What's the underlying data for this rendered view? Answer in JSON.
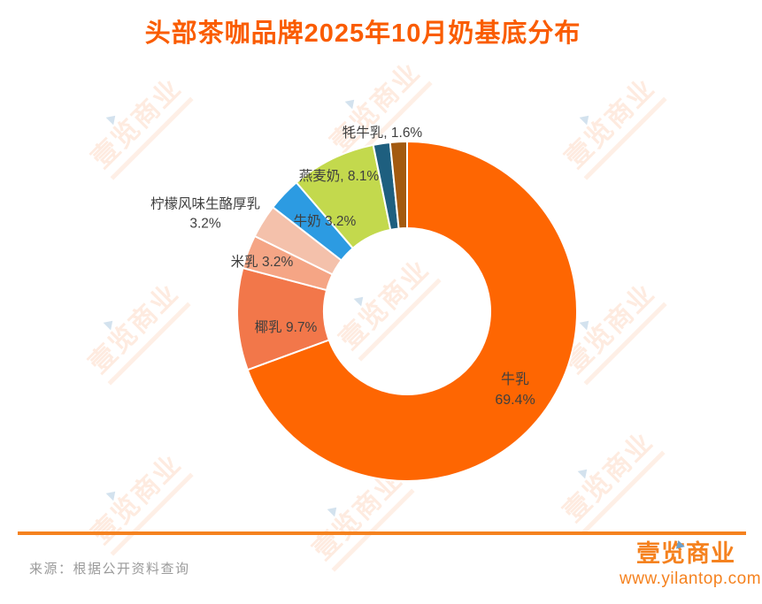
{
  "title": "头部茶咖品牌2025年10月奶基底分布",
  "watermark": {
    "text": "壹览商业"
  },
  "chart_data": {
    "type": "pie",
    "subtype": "donut",
    "title": "头部茶咖品牌2025年10月奶基底分布",
    "start_angle_deg": 0,
    "direction": "clockwise",
    "hole_ratio": 0.49,
    "legend": "none",
    "slices": [
      {
        "name": "牛乳",
        "value": 69.4,
        "color": "#fe6602",
        "label_lines": [
          "牛乳",
          "69.4%"
        ],
        "label_position": "inside"
      },
      {
        "name": "椰乳",
        "value": 9.7,
        "color": "#f2774a",
        "label_lines": [
          "椰乳 9.7%"
        ],
        "label_position": "inside"
      },
      {
        "name": "米乳",
        "value": 3.2,
        "color": "#f5a585",
        "label_lines": [
          "米乳 3.2%"
        ],
        "label_position": "inside"
      },
      {
        "name": "柠檬风味生酪厚乳",
        "value": 3.2,
        "color": "#f4c1ab",
        "label_lines": [
          "柠檬风味生酪厚乳",
          "3.2%"
        ],
        "label_position": "outside"
      },
      {
        "name": "牛奶",
        "value": 3.2,
        "color": "#2c9be2",
        "label_lines": [
          "牛奶 3.2%"
        ],
        "label_position": "inside"
      },
      {
        "name": "燕麦奶",
        "value": 8.1,
        "color": "#c3d94d",
        "label_lines": [
          "燕麦奶, 8.1%"
        ],
        "label_position": "inside"
      },
      {
        "name": "牦牛乳",
        "value": 1.6,
        "color": "#1e5f7f",
        "label_lines": [
          "牦牛乳, 1.6%"
        ],
        "label_position": "outside"
      },
      {
        "name": "",
        "value": 1.6,
        "color": "#a35a10",
        "label_lines": [],
        "label_position": "none"
      }
    ]
  },
  "footer": {
    "source": "来源：根据公开资料查询",
    "logo_text": "壹览商业",
    "logo_url": "www.yilantop.com"
  },
  "colors": {
    "title": "#fa5c00",
    "divider": "#f5821f",
    "source_text": "#9a9a9a",
    "label_text": "#3f3f3f"
  }
}
